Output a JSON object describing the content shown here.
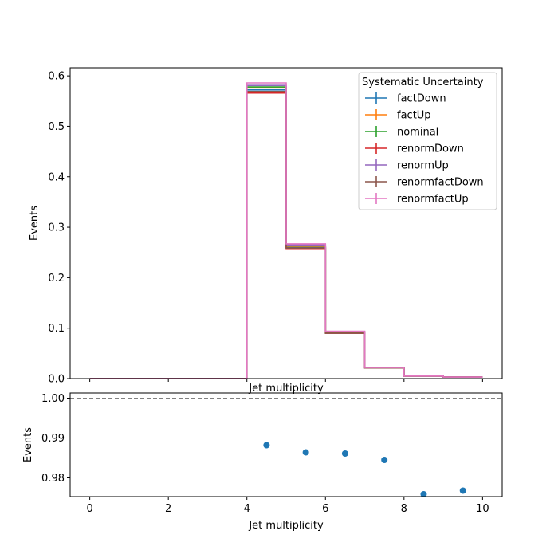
{
  "chart_data": [
    {
      "type": "step",
      "xlabel": "Jet multiplicity",
      "ylabel": "Events",
      "xlim": [
        -0.5,
        10.5
      ],
      "ylim": [
        0,
        0.616
      ],
      "xticks": [
        0,
        2,
        4,
        6,
        8,
        10
      ],
      "yticks": [
        0.0,
        0.1,
        0.2,
        0.3,
        0.4,
        0.5,
        0.6
      ],
      "ytick_labels": [
        "0.0",
        "0.1",
        "0.2",
        "0.3",
        "0.4",
        "0.5",
        "0.6"
      ],
      "bin_edges": [
        0,
        1,
        2,
        3,
        4,
        5,
        6,
        7,
        8,
        9,
        10
      ],
      "legend": {
        "title": "Systematic Uncertainty",
        "placement": "upper right"
      },
      "series": [
        {
          "name": "factDown",
          "color": "#1f77b4",
          "values": [
            0,
            0,
            0,
            0,
            0.572,
            0.26,
            0.091,
            0.022,
            0.005,
            0.003
          ]
        },
        {
          "name": "factUp",
          "color": "#ff7f0e",
          "values": [
            0,
            0,
            0,
            0,
            0.576,
            0.262,
            0.092,
            0.022,
            0.005,
            0.003
          ]
        },
        {
          "name": "nominal",
          "color": "#2ca02c",
          "values": [
            0,
            0,
            0,
            0,
            0.578,
            0.263,
            0.092,
            0.022,
            0.005,
            0.003
          ]
        },
        {
          "name": "renormDown",
          "color": "#d62728",
          "values": [
            0,
            0,
            0,
            0,
            0.566,
            0.258,
            0.09,
            0.021,
            0.005,
            0.003
          ]
        },
        {
          "name": "renormUp",
          "color": "#9467bd",
          "values": [
            0,
            0,
            0,
            0,
            0.581,
            0.265,
            0.093,
            0.022,
            0.005,
            0.003
          ]
        },
        {
          "name": "renormfactDown",
          "color": "#8c564b",
          "values": [
            0,
            0,
            0,
            0,
            0.569,
            0.259,
            0.09,
            0.021,
            0.005,
            0.003
          ]
        },
        {
          "name": "renormfactUp",
          "color": "#e377c2",
          "values": [
            0,
            0,
            0,
            0,
            0.586,
            0.267,
            0.094,
            0.022,
            0.005,
            0.003
          ]
        }
      ]
    },
    {
      "type": "scatter",
      "xlabel": "Jet multiplicity",
      "ylabel": "Events",
      "xlim": [
        -0.5,
        10.5
      ],
      "ylim": [
        0.9753,
        1.0013
      ],
      "xticks": [
        0,
        2,
        4,
        6,
        8,
        10
      ],
      "yticks": [
        0.98,
        0.99,
        1.0
      ],
      "ytick_labels": [
        "0.98",
        "0.99",
        "1.00"
      ],
      "reference_line": 1.0,
      "points": [
        {
          "x": 4.5,
          "y": 0.9882
        },
        {
          "x": 5.5,
          "y": 0.9864
        },
        {
          "x": 6.5,
          "y": 0.9861
        },
        {
          "x": 7.5,
          "y": 0.9845
        },
        {
          "x": 8.5,
          "y": 0.9759
        },
        {
          "x": 9.5,
          "y": 0.9768
        }
      ],
      "marker_color": "#1f77b4"
    }
  ]
}
